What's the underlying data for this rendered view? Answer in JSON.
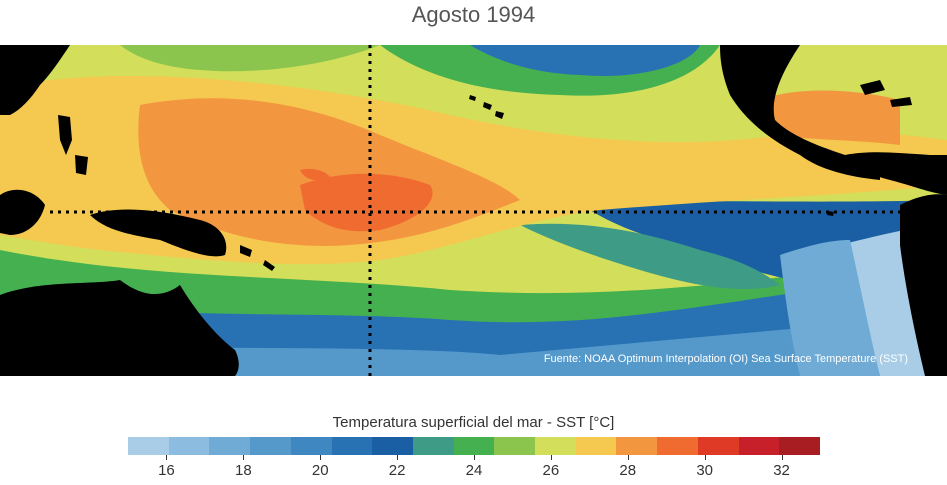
{
  "title": "Agosto 1994",
  "source": "Fuente: NOAA Optimum Interpolation (OI) Sea Surface Temperature (SST)",
  "colorbar": {
    "label": "Temperatura superficial del mar - SST  [°C]",
    "min": 15,
    "max": 33,
    "ticks": [
      "16",
      "18",
      "20",
      "22",
      "24",
      "26",
      "28",
      "30",
      "32"
    ],
    "colors": [
      "#a9cde6",
      "#8cbcdf",
      "#70abd5",
      "#5599cb",
      "#3e87c0",
      "#2872b4",
      "#1a5fa3",
      "#3d9b86",
      "#45b04f",
      "#8cc54e",
      "#d3df5a",
      "#f5c84f",
      "#f39640",
      "#ef6b2f",
      "#df3a26",
      "#c8202a",
      "#a81d22"
    ]
  },
  "colors": {
    "land": "#000000",
    "warm_pool": "#f39640",
    "max_core": "#ef6b2f",
    "eq_cold_tongue": "#3d9b86",
    "peru_coast": "#a9cde6",
    "guide_lines": "#000000"
  }
}
